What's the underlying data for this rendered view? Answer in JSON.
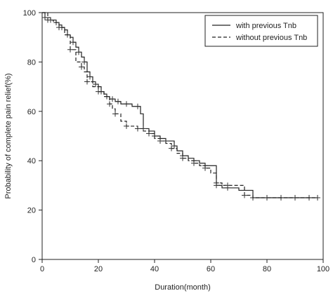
{
  "chart_data": {
    "type": "line",
    "title": "",
    "xlabel": "Duration(month)",
    "ylabel": "Probability of complete pain relief(%)",
    "xlim": [
      0,
      100
    ],
    "ylim": [
      0,
      100
    ],
    "xticks": [
      "0",
      "20",
      "40",
      "60",
      "80",
      "100"
    ],
    "yticks": [
      "0",
      "20",
      "40",
      "60",
      "80",
      "100"
    ],
    "grid": false,
    "legend_position": "top-right",
    "series": [
      {
        "name": "with previous Tnb",
        "style": "solid",
        "x": [
          0,
          1,
          2,
          3,
          4,
          5,
          6,
          7,
          8,
          9,
          10,
          11,
          12,
          13,
          14,
          15,
          16,
          17,
          18,
          19,
          20,
          21,
          22,
          23,
          24,
          25,
          26,
          27,
          28,
          30,
          32,
          34,
          35,
          36,
          38,
          40,
          42,
          44,
          46,
          47,
          48,
          50,
          52,
          54,
          56,
          58,
          60,
          62,
          64,
          66,
          70,
          75,
          80,
          85,
          90,
          95,
          98
        ],
        "y": [
          100,
          98,
          98,
          97,
          97,
          96,
          95,
          94,
          93,
          91,
          90,
          88,
          86,
          84,
          82,
          80,
          76,
          74,
          72,
          71,
          70,
          68,
          67,
          66,
          65,
          65,
          64,
          64,
          63,
          63,
          62,
          62,
          59,
          53,
          52,
          50,
          49,
          48,
          48,
          46,
          44,
          42,
          41,
          40,
          39,
          38,
          38,
          30,
          29,
          29,
          28,
          25,
          25,
          25,
          25,
          25,
          25
        ]
      },
      {
        "name": "without previous Tnb",
        "style": "dashed",
        "x": [
          0,
          2,
          4,
          6,
          8,
          10,
          12,
          14,
          15,
          16,
          18,
          20,
          22,
          24,
          25,
          26,
          28,
          30,
          32,
          34,
          36,
          38,
          40,
          42,
          44,
          46,
          48,
          50,
          52,
          54,
          56,
          58,
          60,
          62,
          64,
          66,
          70,
          72,
          75,
          80,
          85,
          90,
          95,
          98
        ],
        "y": [
          100,
          97,
          96,
          94,
          91,
          85,
          80,
          78,
          76,
          72,
          70,
          68,
          66,
          63,
          61,
          59,
          56,
          54,
          54,
          53,
          52,
          51,
          49,
          48,
          47,
          45,
          43,
          41,
          40,
          39,
          38,
          37,
          35,
          31,
          30,
          30,
          30,
          26,
          25,
          25,
          25,
          25,
          25,
          25
        ]
      }
    ]
  }
}
